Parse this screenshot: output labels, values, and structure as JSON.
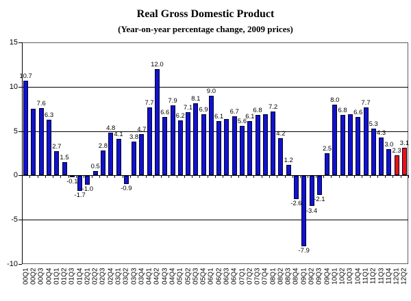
{
  "title": "Real Gross Domestic Product",
  "subtitle": "(Year-on-year percentage change, 2009 prices)",
  "colors": {
    "bar_default": "#1212CE",
    "bar_highlight": "#ED1111",
    "bar_border": "#000028",
    "axis": "#000000"
  },
  "chart_data": {
    "type": "bar",
    "title": "Real Gross Domestic Product",
    "subtitle": "(Year-on-year percentage change, 2009 prices)",
    "xlabel": "",
    "ylabel": "",
    "ylim": [
      -10,
      15
    ],
    "yticks": [
      15,
      10,
      5,
      0,
      -5,
      -10
    ],
    "gridline_values": [
      10,
      5,
      -5
    ],
    "grid": true,
    "legend": "none",
    "categories": [
      "00Q1",
      "00Q2",
      "00Q3",
      "00Q4",
      "01Q1",
      "01Q2",
      "01Q3",
      "01Q4",
      "02Q1",
      "02Q2",
      "02Q3",
      "02Q4",
      "03Q1",
      "03Q2",
      "03Q3",
      "03Q4",
      "04Q1",
      "04Q2",
      "04Q3",
      "04Q4",
      "05Q1",
      "05Q2",
      "05Q3",
      "05Q4",
      "06Q1",
      "06Q2",
      "06Q3",
      "06Q4",
      "07Q1",
      "07Q2",
      "07Q3",
      "07Q4",
      "08Q1",
      "08Q2",
      "08Q3",
      "08Q4",
      "09Q1",
      "09Q2",
      "09Q3",
      "09Q4",
      "10Q1",
      "10Q2",
      "10Q3",
      "10Q4",
      "11Q1",
      "11Q2",
      "11Q3",
      "11Q4",
      "12Q1",
      "12Q2"
    ],
    "values": [
      10.7,
      7.5,
      7.6,
      6.3,
      2.7,
      1.5,
      -0.1,
      -1.7,
      -1.0,
      0.5,
      2.8,
      4.8,
      4.1,
      -0.9,
      3.8,
      4.7,
      7.7,
      12.0,
      6.6,
      7.9,
      6.2,
      7.1,
      8.1,
      6.9,
      9.0,
      6.1,
      6.4,
      6.7,
      5.6,
      6.1,
      6.8,
      6.9,
      7.2,
      4.2,
      1.2,
      -2.6,
      -7.9,
      -3.4,
      -2.1,
      2.5,
      8.0,
      6.8,
      6.9,
      6.6,
      7.7,
      5.3,
      4.3,
      3.0,
      2.3,
      3.1
    ],
    "value_labels": [
      "10.7",
      "",
      "7.6",
      "6.3",
      "2.7",
      "1.5",
      "-0.1",
      "-1.7",
      "-1.0",
      "0.5",
      "2.8",
      "4.8",
      "4.1",
      "-0.9",
      "3.8",
      "4.7",
      "7.7",
      "12.0",
      "6.6",
      "7.9",
      "6.2",
      "7.1",
      "8.1",
      "6.9",
      "9.0",
      "6.1",
      "",
      "6.7",
      "5.6",
      "6.1",
      "6.8",
      "",
      "7.2",
      "4.2",
      "1.2",
      "-2.6",
      "-7.9",
      "-3.4",
      "-2.1",
      "2.5",
      "8.0",
      "6.8",
      "",
      "6.6",
      "7.7",
      "5.3",
      "4.3",
      "3.0",
      "2.3",
      "3.1"
    ],
    "highlight_indices": [
      48,
      49
    ]
  }
}
